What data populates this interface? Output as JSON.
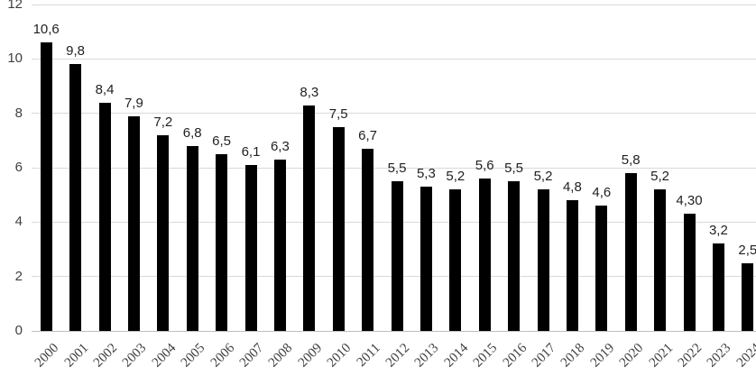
{
  "chart_data": {
    "type": "bar",
    "title": "",
    "xlabel": "",
    "ylabel": "",
    "categories": [
      "2000",
      "2001",
      "2002",
      "2003",
      "2004",
      "2005",
      "2006",
      "2007",
      "2008",
      "2009",
      "2010",
      "2011",
      "2012",
      "2013",
      "2014",
      "2015",
      "2016",
      "2017",
      "2018",
      "2019",
      "2020",
      "2021",
      "2022",
      "2023",
      "2024"
    ],
    "values": [
      10.6,
      9.8,
      8.4,
      7.9,
      7.2,
      6.8,
      6.5,
      6.1,
      6.3,
      8.3,
      7.5,
      6.7,
      5.5,
      5.3,
      5.2,
      5.6,
      5.5,
      5.2,
      4.8,
      4.6,
      5.8,
      5.2,
      4.3,
      3.2,
      2.5
    ],
    "value_labels": [
      "10,6",
      "9,8",
      "8,4",
      "7,9",
      "7,2",
      "6,8",
      "6,5",
      "6,1",
      "6,3",
      "8,3",
      "7,5",
      "6,7",
      "5,5",
      "5,3",
      "5,2",
      "5,6",
      "5,5",
      "5,2",
      "4,8",
      "4,6",
      "5,8",
      "5,2",
      "4,30",
      "3,2",
      "2,5"
    ],
    "yticks": [
      0,
      2,
      4,
      6,
      8,
      10,
      12
    ],
    "ylim": [
      0,
      12
    ],
    "grid": true,
    "legend": "none",
    "bar_color": "#000000",
    "gridline_color": "#D9D9D9",
    "axis_line_color": "#BFBFBF",
    "value_label_color": "#1f1f1f",
    "tick_label_color": "#3f3f3f"
  }
}
